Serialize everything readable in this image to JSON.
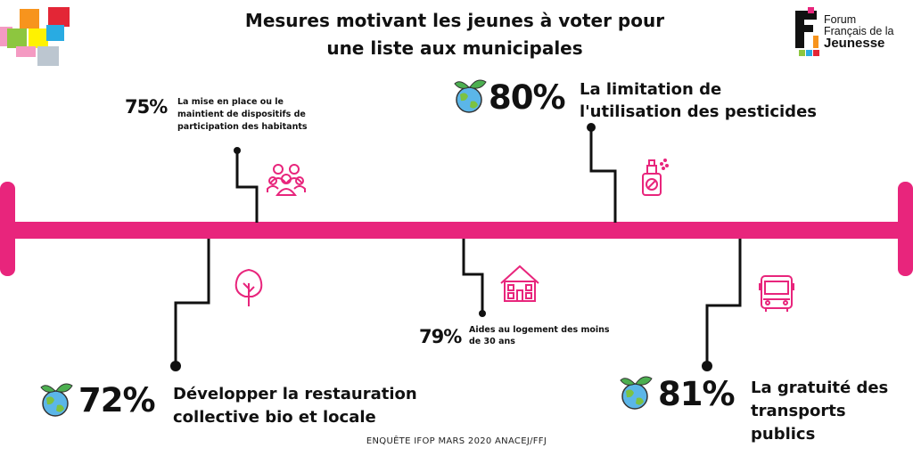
{
  "title_line1": "Mesures motivant les jeunes à voter pour",
  "title_line2": "une liste aux municipales",
  "logo": {
    "line1": "Forum",
    "line2": "Français de la",
    "line3": "Jeunesse"
  },
  "source": "ENQUÊTE IFOP MARS 2020 ANACEJ/FFJ",
  "colors": {
    "accent": "#e8257c",
    "line": "#111111",
    "deco": [
      "#f7941d",
      "#e32636",
      "#8dc63f",
      "#fff200",
      "#29abe2",
      "#f49ac2",
      "#bcc6d0"
    ]
  },
  "measures": [
    {
      "id": "participation",
      "percent": "75%",
      "label_lines": [
        "La mise en place ou le",
        "maintient de dispositifs de",
        "participation des habitants"
      ],
      "icon": "people-group-icon"
    },
    {
      "id": "pesticides",
      "percent": "80%",
      "label_lines": [
        "La limitation de",
        "l'utilisation des pesticides"
      ],
      "icon": "spray-bottle-icon",
      "badge": "earth-icon"
    },
    {
      "id": "restauration",
      "percent": "72%",
      "label_lines": [
        "Développer la restauration",
        "collective bio et locale"
      ],
      "icon": "tree-icon",
      "badge": "earth-icon"
    },
    {
      "id": "logement",
      "percent": "79%",
      "label_lines": [
        "Aides au logement des moins",
        "de 30 ans"
      ],
      "icon": "house-icon"
    },
    {
      "id": "transports",
      "percent": "81%",
      "label_lines": [
        "La gratuité des",
        "transports",
        "publics"
      ],
      "icon": "bus-icon",
      "badge": "earth-icon"
    }
  ]
}
